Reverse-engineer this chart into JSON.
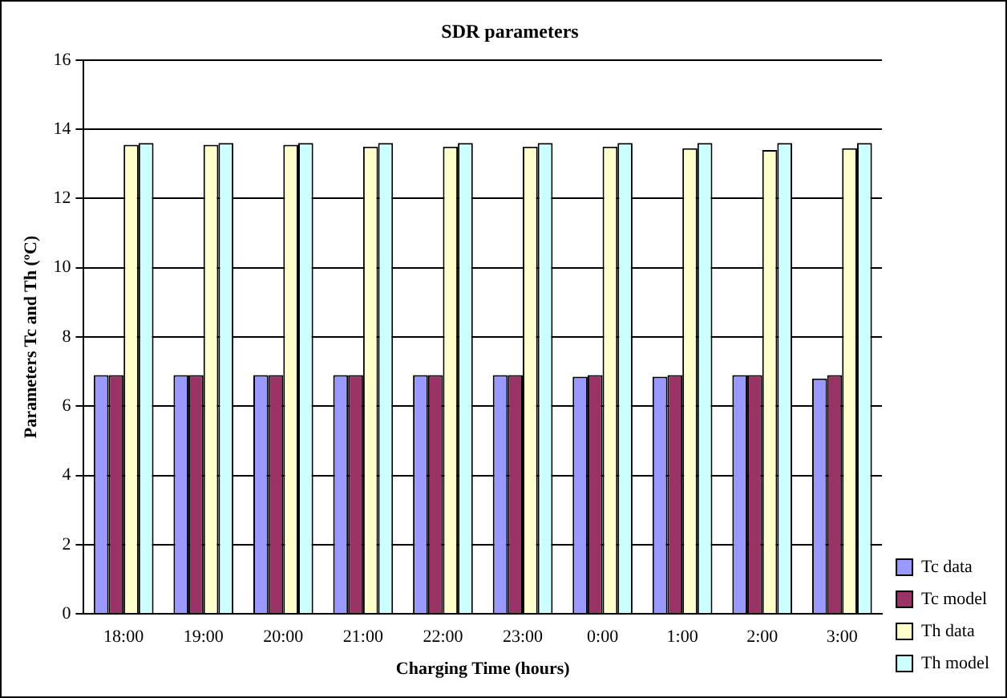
{
  "chart_data": {
    "type": "bar",
    "title": "SDR parameters",
    "xlabel": "Charging Time (hours)",
    "ylabel": "Parameters Tc and Th (ºC)",
    "categories": [
      "18:00",
      "19:00",
      "20:00",
      "21:00",
      "22:00",
      "23:00",
      "0:00",
      "1:00",
      "2:00",
      "3:00"
    ],
    "series": [
      {
        "name": "Tc data",
        "color": "#9999ff",
        "values": [
          6.9,
          6.9,
          6.9,
          6.9,
          6.9,
          6.9,
          6.85,
          6.85,
          6.9,
          6.8
        ]
      },
      {
        "name": "Tc model",
        "color": "#993366",
        "values": [
          6.9,
          6.9,
          6.9,
          6.9,
          6.9,
          6.9,
          6.9,
          6.9,
          6.9,
          6.9
        ]
      },
      {
        "name": "Th data",
        "color": "#ffffcc",
        "values": [
          13.55,
          13.55,
          13.55,
          13.5,
          13.5,
          13.5,
          13.5,
          13.45,
          13.4,
          13.45
        ]
      },
      {
        "name": "Th model",
        "color": "#ccffff",
        "values": [
          13.6,
          13.6,
          13.6,
          13.6,
          13.6,
          13.6,
          13.6,
          13.6,
          13.6,
          13.6
        ]
      }
    ],
    "ylim": [
      0,
      16
    ],
    "yticks": [
      0,
      2,
      4,
      6,
      8,
      10,
      12,
      14,
      16
    ],
    "grid": "y",
    "legend": "bottom right"
  }
}
